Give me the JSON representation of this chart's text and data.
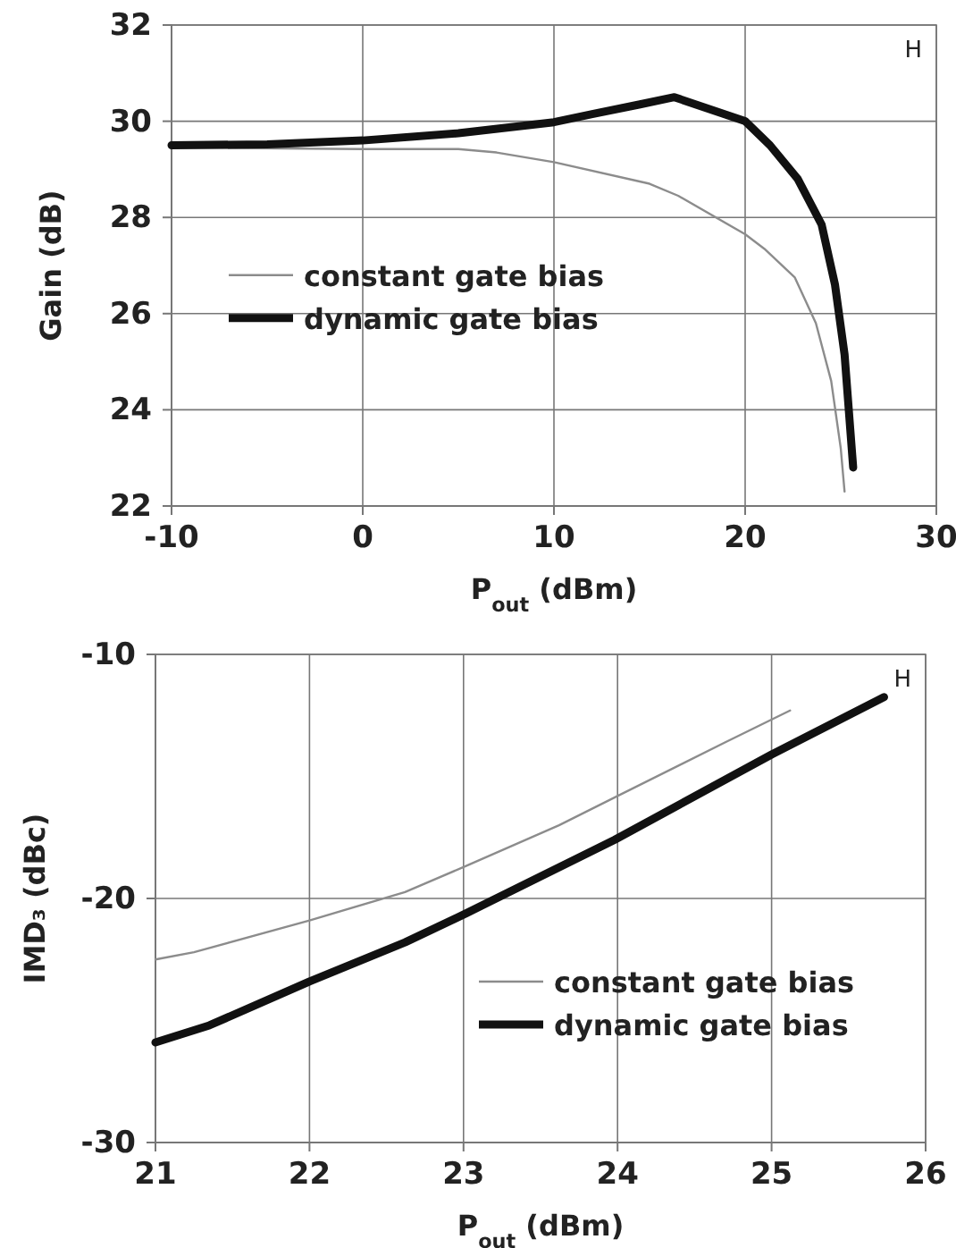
{
  "chart_data": [
    {
      "type": "line",
      "xlabel": "P$_{out}$ (dBm)",
      "ylabel": "Gain (dB)",
      "xlim": [
        -10,
        30
      ],
      "xticks": [
        -10,
        0,
        10,
        20,
        30
      ],
      "ylim": [
        22,
        32
      ],
      "yticks": [
        22,
        24,
        26,
        28,
        30,
        32
      ],
      "grid": true,
      "legend": "left",
      "annotations": [
        "H"
      ],
      "series": [
        {
          "name": "constant gate bias",
          "color": "#8c8c8c",
          "x": [
            -10,
            0,
            5,
            7,
            10,
            15,
            16.5,
            20,
            21,
            22.6,
            23.7,
            24.5,
            25,
            25.2
          ],
          "values": [
            29.45,
            29.42,
            29.42,
            29.35,
            29.15,
            28.7,
            28.45,
            27.65,
            27.35,
            26.75,
            25.8,
            24.6,
            23.2,
            22.3
          ]
        },
        {
          "name": "dynamic gate bias",
          "color": "#111111",
          "x": [
            -10,
            -5,
            0,
            5,
            10,
            12,
            14.5,
            16.3,
            20,
            21.3,
            22.75,
            24,
            24.7,
            25.2,
            25.65
          ],
          "values": [
            29.5,
            29.52,
            29.6,
            29.75,
            29.98,
            30.15,
            30.35,
            30.5,
            30,
            29.5,
            28.8,
            27.85,
            26.6,
            25.15,
            22.8
          ]
        }
      ]
    },
    {
      "type": "line",
      "xlabel": "P$_{out}$ (dBm)",
      "ylabel": "IMD₃ (dBc)",
      "xlim": [
        21,
        26
      ],
      "xticks": [
        21,
        22,
        23,
        24,
        25,
        26
      ],
      "ylim": [
        -30,
        -10
      ],
      "yticks": [
        -30,
        -20,
        -10
      ],
      "grid": true,
      "legend": "bottom right",
      "annotations": [
        "H"
      ],
      "series": [
        {
          "name": "constant gate bias",
          "color": "#8c8c8c",
          "x": [
            21,
            21.25,
            22,
            22.62,
            23.02,
            23.62,
            24,
            24.7,
            25.12
          ],
          "values": [
            -22.5,
            -22.2,
            -20.9,
            -19.74,
            -18.66,
            -17,
            -15.8,
            -13.6,
            -12.3
          ]
        },
        {
          "name": "dynamic gate bias",
          "color": "#111111",
          "x": [
            21,
            21.35,
            22,
            22.62,
            23.02,
            23.98,
            25,
            25.73
          ],
          "values": [
            -25.9,
            -25.2,
            -23.4,
            -21.8,
            -20.6,
            -17.6,
            -14.1,
            -11.75
          ]
        }
      ]
    }
  ]
}
